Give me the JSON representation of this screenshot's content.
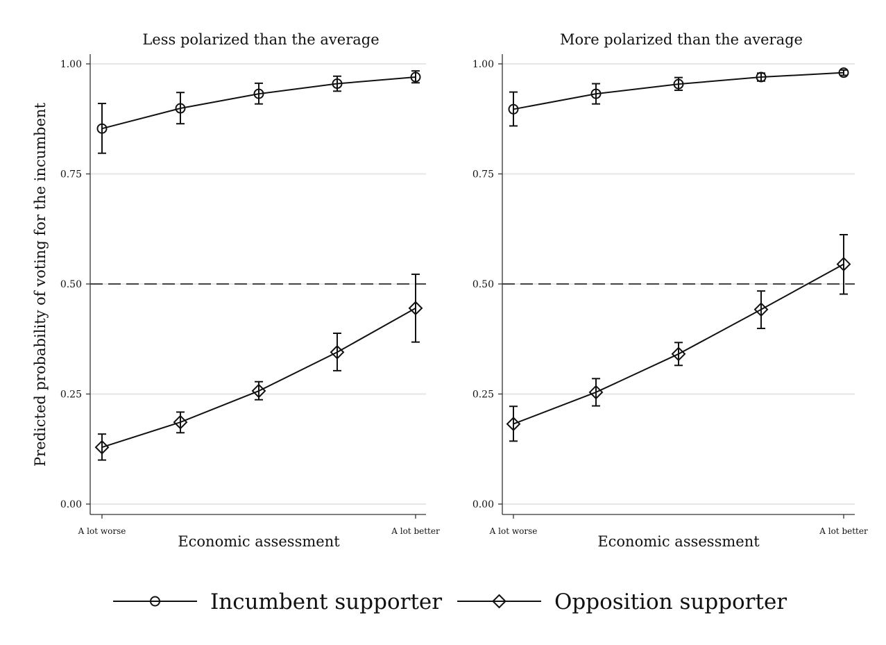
{
  "chart_data": {
    "type": "line",
    "ylabel": "Predicted probability of voting for the incumbent",
    "legend_position": "bottom",
    "series_names": [
      "Incumbent supporter",
      "Opposition supporter"
    ],
    "markers": [
      "circle",
      "diamond"
    ],
    "reference_line_y": 0.5,
    "grid": true,
    "ylim": [
      0,
      1
    ],
    "yticks": [
      "0.00",
      "0.25",
      "0.50",
      "0.75",
      "1.00"
    ],
    "panels": [
      {
        "title": "Less polarized than the average",
        "xlabel": "Economic assessment",
        "x": [
          1,
          2,
          3,
          4,
          5
        ],
        "xtick_labels": [
          "A lot worse",
          "",
          "",
          "",
          "A lot better"
        ],
        "series": [
          {
            "name": "Incumbent supporter",
            "values": [
              0.853,
              0.899,
              0.932,
              0.955,
              0.97
            ],
            "ci_low": [
              0.797,
              0.864,
              0.909,
              0.938,
              0.957
            ],
            "ci_high": [
              0.91,
              0.935,
              0.956,
              0.972,
              0.984
            ]
          },
          {
            "name": "Opposition supporter",
            "values": [
              0.129,
              0.186,
              0.257,
              0.345,
              0.445
            ],
            "ci_low": [
              0.1,
              0.162,
              0.237,
              0.303,
              0.368
            ],
            "ci_high": [
              0.159,
              0.209,
              0.278,
              0.388,
              0.522
            ]
          }
        ]
      },
      {
        "title": "More polarized than the average",
        "xlabel": "Economic assessment",
        "x": [
          1,
          2,
          3,
          4,
          5
        ],
        "xtick_labels": [
          "A lot worse",
          "",
          "",
          "",
          "A lot better"
        ],
        "series": [
          {
            "name": "Incumbent supporter",
            "values": [
              0.897,
              0.932,
              0.954,
              0.97,
              0.98
            ],
            "ci_low": [
              0.859,
              0.909,
              0.94,
              0.961,
              0.974
            ],
            "ci_high": [
              0.936,
              0.955,
              0.969,
              0.979,
              0.986
            ]
          },
          {
            "name": "Opposition supporter",
            "values": [
              0.182,
              0.254,
              0.341,
              0.442,
              0.545
            ],
            "ci_low": [
              0.143,
              0.223,
              0.315,
              0.399,
              0.477
            ],
            "ci_high": [
              0.222,
              0.285,
              0.367,
              0.484,
              0.612
            ]
          }
        ]
      }
    ]
  }
}
